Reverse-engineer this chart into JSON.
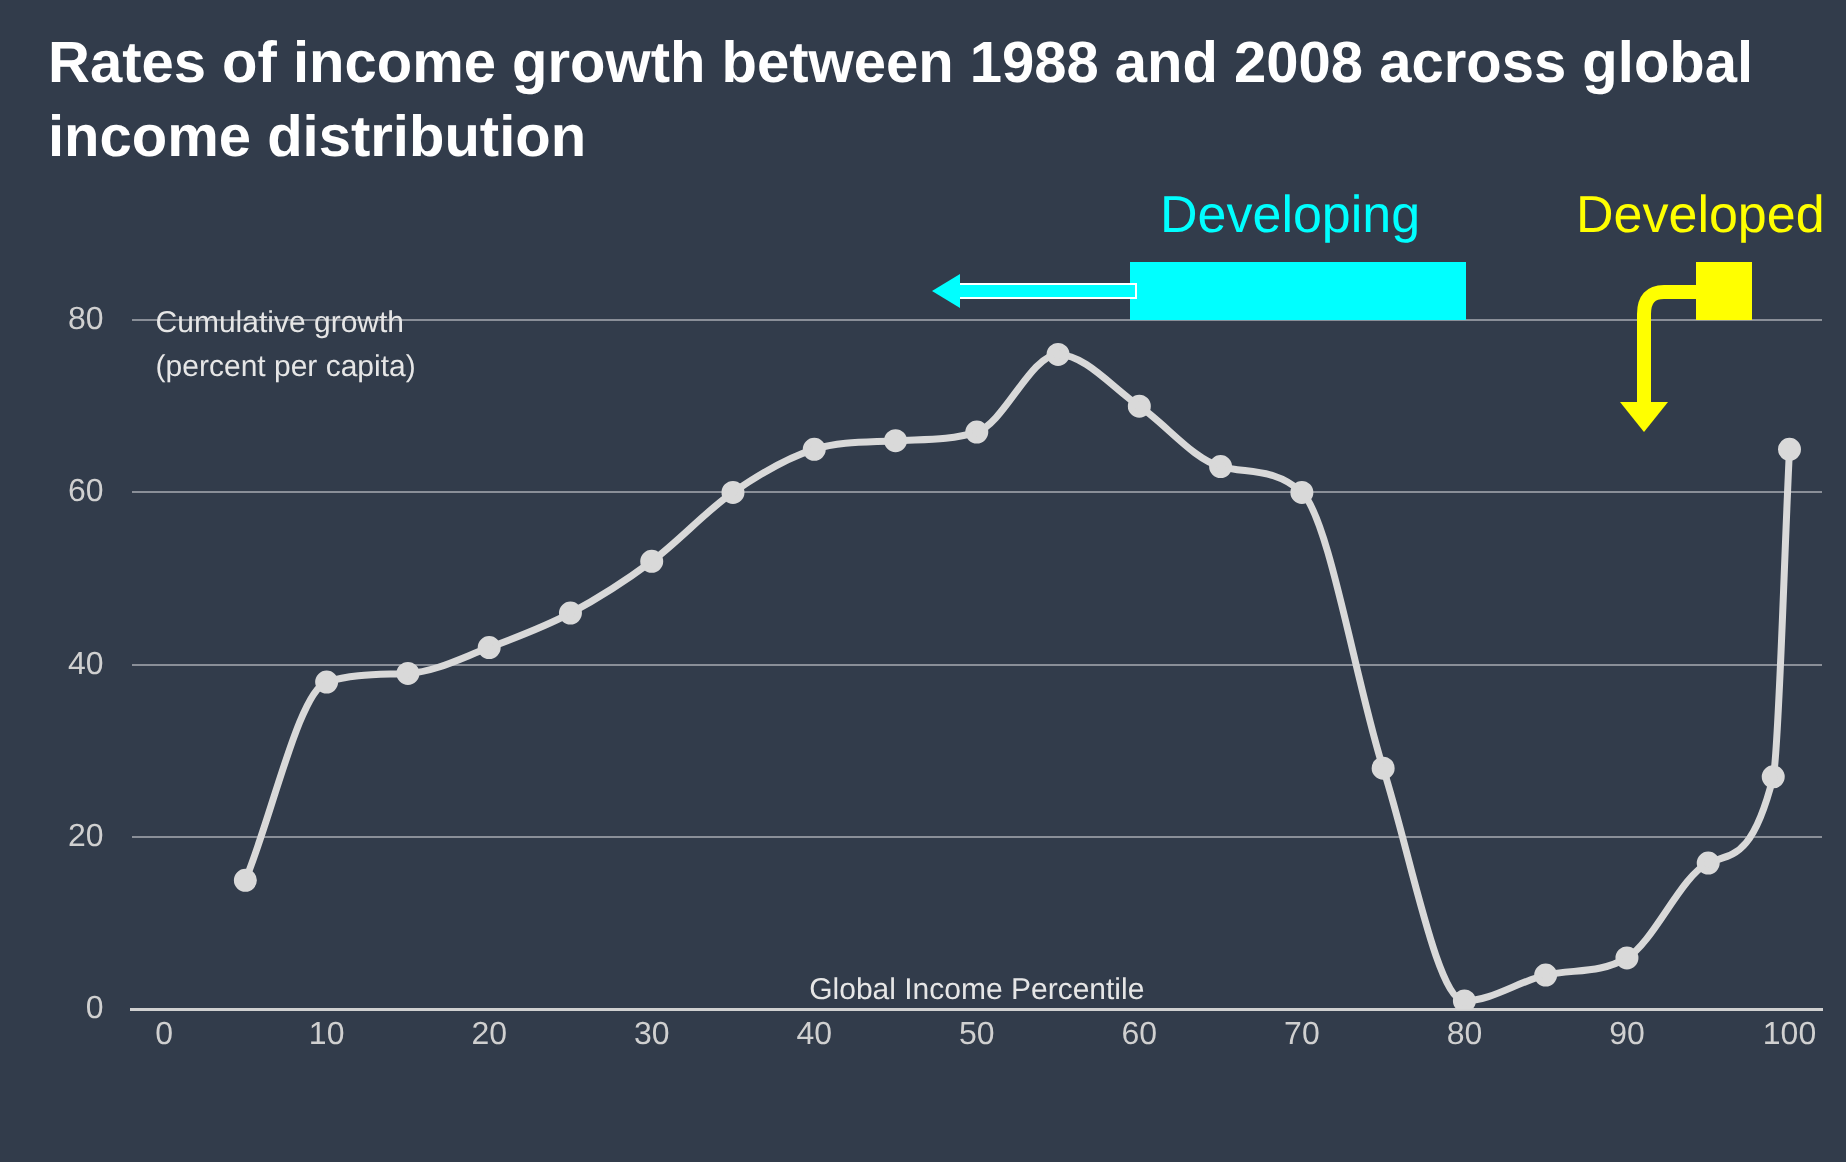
{
  "chart_data": {
    "type": "line",
    "title": "Rates of income growth between 1988 and 2008 across global income distribution",
    "xlabel": "Global Income Percentile",
    "ylabel": "Cumulative growth\n(percent per capita)",
    "annotations": [
      "Developing",
      "Developed"
    ],
    "x": [
      5,
      10,
      15,
      20,
      25,
      30,
      35,
      40,
      45,
      50,
      55,
      60,
      65,
      70,
      75,
      80,
      85,
      90,
      95,
      99,
      100
    ],
    "series": [
      {
        "color": "#d9d9d9",
        "values": [
          15,
          38,
          39,
          42,
          46,
          52,
          60,
          65,
          66,
          67,
          76,
          70,
          63,
          60,
          28,
          1,
          4,
          6,
          17,
          27,
          65
        ]
      }
    ],
    "xlim": [
      -2,
      102
    ],
    "xticks": [
      0,
      10,
      20,
      30,
      40,
      50,
      60,
      70,
      80,
      90,
      100
    ],
    "ylim": [
      0,
      80
    ],
    "yticks": [
      0,
      20,
      40,
      60,
      80
    ],
    "grid": "y",
    "marker": "circle",
    "line_style": "solid",
    "legend": false
  }
}
